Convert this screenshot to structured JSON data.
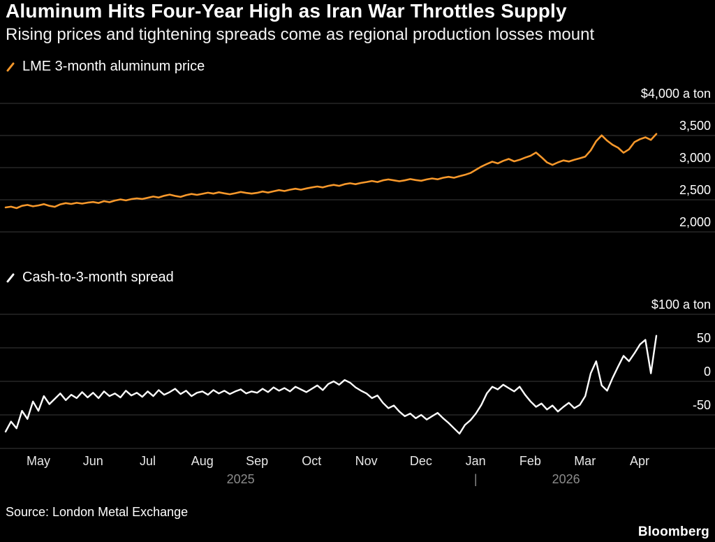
{
  "header": {
    "title": "Aluminum Hits Four-Year High as Iran War Throttles Supply",
    "subtitle": "Rising prices and tightening spreads come as regional production losses mount"
  },
  "chart_data": [
    {
      "type": "line",
      "title": "LME 3-month aluminum price",
      "ylim": [
        2000,
        4000
      ],
      "grid": "horizontal",
      "legend_position": "top-left",
      "yticks": [
        {
          "value": 4000,
          "label": "$4,000 a ton"
        },
        {
          "value": 3500,
          "label": "3,500"
        },
        {
          "value": 3000,
          "label": "3,000"
        },
        {
          "value": 2500,
          "label": "2,500"
        },
        {
          "value": 2000,
          "label": "2,000"
        }
      ],
      "series": [
        {
          "name": "LME 3-month aluminum price",
          "color": "#F7982B",
          "values": [
            2380,
            2392,
            2370,
            2405,
            2420,
            2398,
            2412,
            2432,
            2405,
            2390,
            2428,
            2448,
            2435,
            2452,
            2440,
            2455,
            2465,
            2450,
            2478,
            2462,
            2488,
            2505,
            2490,
            2510,
            2522,
            2512,
            2530,
            2550,
            2535,
            2562,
            2580,
            2560,
            2545,
            2572,
            2590,
            2576,
            2592,
            2610,
            2596,
            2616,
            2600,
            2586,
            2602,
            2622,
            2606,
            2596,
            2608,
            2628,
            2612,
            2632,
            2650,
            2636,
            2656,
            2672,
            2656,
            2676,
            2692,
            2706,
            2692,
            2716,
            2732,
            2716,
            2742,
            2756,
            2742,
            2762,
            2776,
            2792,
            2776,
            2802,
            2816,
            2802,
            2788,
            2802,
            2822,
            2806,
            2796,
            2816,
            2832,
            2818,
            2842,
            2856,
            2842,
            2866,
            2888,
            2916,
            2966,
            3016,
            3056,
            3092,
            3066,
            3105,
            3135,
            3098,
            3122,
            3155,
            3185,
            3235,
            3162,
            3082,
            3042,
            3082,
            3112,
            3096,
            3122,
            3146,
            3172,
            3268,
            3412,
            3502,
            3420,
            3355,
            3310,
            3232,
            3285,
            3398,
            3442,
            3472,
            3432,
            3525
          ]
        }
      ]
    },
    {
      "type": "line",
      "title": "Cash-to-3-month spread",
      "ylim": [
        -100,
        100
      ],
      "grid": "horizontal",
      "legend_position": "top-left",
      "yticks": [
        {
          "value": 100,
          "label": "$100 a ton"
        },
        {
          "value": 50,
          "label": "50"
        },
        {
          "value": 0,
          "label": "0"
        },
        {
          "value": -50,
          "label": "-50"
        }
      ],
      "series": [
        {
          "name": "Cash-to-3-month spread",
          "color": "#FFFFFF",
          "values": [
            -75,
            -60,
            -70,
            -44,
            -56,
            -30,
            -44,
            -22,
            -34,
            -26,
            -18,
            -28,
            -20,
            -25,
            -16,
            -24,
            -17,
            -25,
            -15,
            -22,
            -18,
            -24,
            -14,
            -21,
            -17,
            -23,
            -15,
            -22,
            -13,
            -20,
            -16,
            -11,
            -19,
            -14,
            -22,
            -17,
            -15,
            -20,
            -13,
            -18,
            -14,
            -19,
            -15,
            -12,
            -18,
            -15,
            -17,
            -11,
            -16,
            -9,
            -14,
            -10,
            -15,
            -8,
            -12,
            -16,
            -11,
            -6,
            -13,
            -4,
            0,
            -5,
            2,
            -2,
            -9,
            -14,
            -18,
            -25,
            -21,
            -32,
            -40,
            -36,
            -45,
            -52,
            -48,
            -55,
            -50,
            -57,
            -52,
            -47,
            -55,
            -62,
            -70,
            -78,
            -65,
            -58,
            -48,
            -35,
            -18,
            -8,
            -12,
            -5,
            -10,
            -15,
            -8,
            -20,
            -30,
            -38,
            -33,
            -42,
            -36,
            -45,
            -38,
            -32,
            -40,
            -35,
            -22,
            12,
            30,
            -6,
            -14,
            5,
            22,
            38,
            30,
            42,
            55,
            62,
            12,
            68
          ]
        }
      ]
    }
  ],
  "x_axis": {
    "months": [
      "May",
      "Jun",
      "Jul",
      "Aug",
      "Sep",
      "Oct",
      "Nov",
      "Dec",
      "Jan",
      "Feb",
      "Mar",
      "Apr"
    ],
    "years": [
      "2025",
      "2026"
    ],
    "year_separator": "|"
  },
  "footer": {
    "source": "Source: London Metal Exchange",
    "brand": "Bloomberg"
  }
}
